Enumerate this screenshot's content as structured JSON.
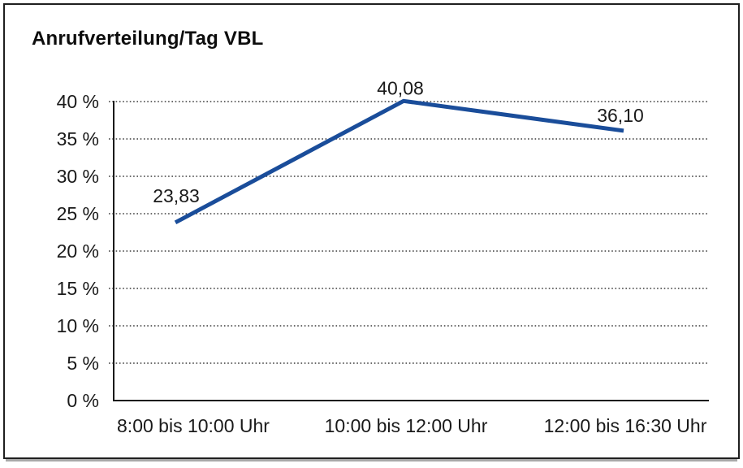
{
  "window": {
    "background": "#ffffff",
    "border_color": "#1f1f1f"
  },
  "chart_data": {
    "type": "line",
    "title": "Anrufverteilung/Tag VBL",
    "categories": [
      "8:00 bis 10:00 Uhr",
      "10:00 bis 12:00 Uhr",
      "12:00 bis 16:30 Uhr"
    ],
    "values": [
      23.83,
      40.08,
      36.1
    ],
    "value_labels": [
      "23,83",
      "40,08",
      "36,10"
    ],
    "y_ticks": [
      {
        "value": 0,
        "label": "0 %"
      },
      {
        "value": 5,
        "label": "5 %"
      },
      {
        "value": 10,
        "label": "10 %"
      },
      {
        "value": 15,
        "label": "15 %"
      },
      {
        "value": 20,
        "label": "20 %"
      },
      {
        "value": 25,
        "label": "25 %"
      },
      {
        "value": 30,
        "label": "30 %"
      },
      {
        "value": 35,
        "label": "35 %"
      },
      {
        "value": 40,
        "label": "40 %"
      }
    ],
    "ylim": [
      0,
      40
    ],
    "xlabel": "",
    "ylabel": "",
    "grid": "horizontal-dotted",
    "legend": "none",
    "line_color": "#1a4d9a",
    "text_color": "#1a1a1a"
  }
}
